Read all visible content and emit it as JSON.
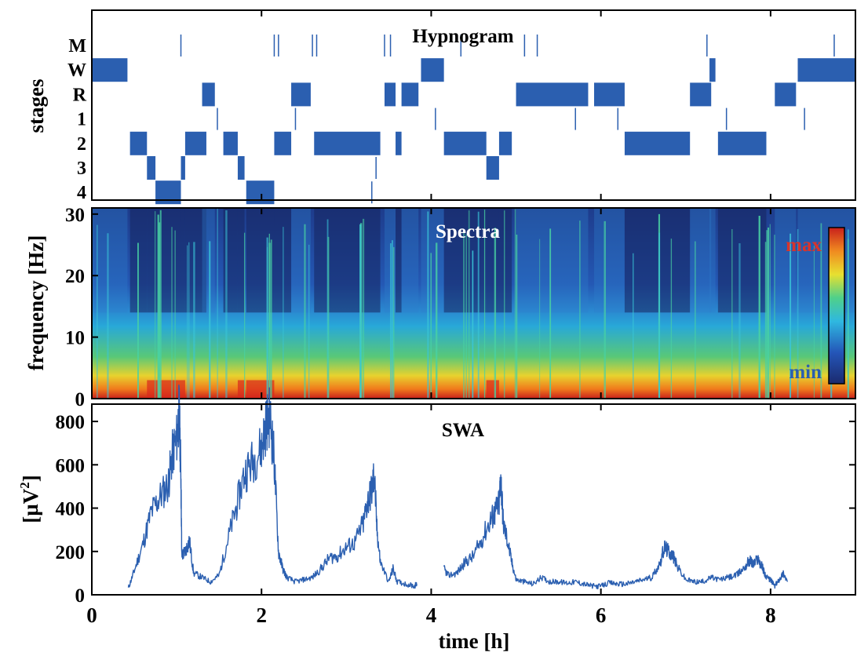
{
  "chart_data": [
    {
      "type": "line",
      "title": "Hypnogram",
      "ylabel": "stages",
      "y_categories": [
        "M",
        "W",
        "R",
        "1",
        "2",
        "3",
        "4"
      ],
      "xlim": [
        0,
        9
      ],
      "x_ticks": [
        0,
        2,
        4,
        6,
        8
      ],
      "color": "#2b5fb0",
      "segments": [
        {
          "stage": "W",
          "start": 0.0,
          "end": 0.42
        },
        {
          "stage": "2",
          "start": 0.45,
          "end": 0.65
        },
        {
          "stage": "3",
          "start": 0.65,
          "end": 0.75
        },
        {
          "stage": "4",
          "start": 0.75,
          "end": 1.05
        },
        {
          "stage": "3",
          "start": 1.05,
          "end": 1.1
        },
        {
          "stage": "2",
          "start": 1.1,
          "end": 1.35
        },
        {
          "stage": "R",
          "start": 1.3,
          "end": 1.45
        },
        {
          "stage": "2",
          "start": 1.55,
          "end": 1.72
        },
        {
          "stage": "3",
          "start": 1.72,
          "end": 1.8
        },
        {
          "stage": "4",
          "start": 1.82,
          "end": 2.15
        },
        {
          "stage": "2",
          "start": 2.15,
          "end": 2.35
        },
        {
          "stage": "R",
          "start": 2.35,
          "end": 2.58
        },
        {
          "stage": "2",
          "start": 2.62,
          "end": 3.4
        },
        {
          "stage": "R",
          "start": 3.45,
          "end": 3.58
        },
        {
          "stage": "2",
          "start": 3.58,
          "end": 3.65
        },
        {
          "stage": "R",
          "start": 3.65,
          "end": 3.85
        },
        {
          "stage": "W",
          "start": 3.88,
          "end": 4.15
        },
        {
          "stage": "2",
          "start": 4.15,
          "end": 4.65
        },
        {
          "stage": "3",
          "start": 4.65,
          "end": 4.8
        },
        {
          "stage": "2",
          "start": 4.8,
          "end": 4.95
        },
        {
          "stage": "R",
          "start": 5.0,
          "end": 5.85
        },
        {
          "stage": "R",
          "start": 5.92,
          "end": 6.28
        },
        {
          "stage": "2",
          "start": 6.28,
          "end": 7.05
        },
        {
          "stage": "R",
          "start": 7.05,
          "end": 7.3
        },
        {
          "stage": "W",
          "start": 7.28,
          "end": 7.35
        },
        {
          "stage": "2",
          "start": 7.38,
          "end": 7.95
        },
        {
          "stage": "R",
          "start": 8.05,
          "end": 8.3
        },
        {
          "stage": "W",
          "start": 8.32,
          "end": 9.0
        }
      ],
      "spikes": [
        {
          "stage": "M",
          "x": 1.05
        },
        {
          "stage": "M",
          "x": 2.15
        },
        {
          "stage": "M",
          "x": 2.2
        },
        {
          "stage": "M",
          "x": 2.6
        },
        {
          "stage": "M",
          "x": 2.65
        },
        {
          "stage": "M",
          "x": 3.45
        },
        {
          "stage": "M",
          "x": 3.52
        },
        {
          "stage": "M",
          "x": 4.35
        },
        {
          "stage": "M",
          "x": 5.1
        },
        {
          "stage": "M",
          "x": 5.25
        },
        {
          "stage": "M",
          "x": 7.25
        },
        {
          "stage": "M",
          "x": 8.75
        },
        {
          "stage": "1",
          "x": 1.48
        },
        {
          "stage": "1",
          "x": 2.4
        },
        {
          "stage": "1",
          "x": 4.05
        },
        {
          "stage": "1",
          "x": 5.7
        },
        {
          "stage": "1",
          "x": 6.2
        },
        {
          "stage": "1",
          "x": 7.48
        },
        {
          "stage": "1",
          "x": 8.4
        },
        {
          "stage": "3",
          "x": 3.35
        },
        {
          "stage": "4",
          "x": 3.3
        }
      ]
    },
    {
      "type": "heatmap",
      "title": "Spectra",
      "ylabel": "frequency [Hz]",
      "xlim": [
        0,
        9
      ],
      "ylim": [
        0,
        31
      ],
      "x_ticks": [
        0,
        2,
        4,
        6,
        8
      ],
      "y_ticks": [
        0,
        10,
        20,
        30
      ],
      "colorbar": {
        "max_label": "max",
        "min_label": "min",
        "max_color": "#d8342c",
        "min_color": "#2b5fb0",
        "placement": "right"
      }
    },
    {
      "type": "line",
      "title": "SWA",
      "ylabel": "[µV",
      "ylabel_sup": "2",
      "ylabel_close": "]",
      "xlabel": "time [h]",
      "xlim": [
        0,
        9
      ],
      "ylim": [
        0,
        880
      ],
      "x_ticks": [
        0,
        2,
        4,
        6,
        8
      ],
      "y_ticks": [
        0,
        200,
        400,
        600,
        800
      ],
      "color": "#2b5fb0",
      "series": [
        {
          "values": [
            [
              0.43,
              30
            ],
            [
              0.5,
              110
            ],
            [
              0.6,
              230
            ],
            [
              0.7,
              380
            ],
            [
              0.8,
              450
            ],
            [
              0.9,
              510
            ],
            [
              0.95,
              650
            ],
            [
              1.0,
              720
            ],
            [
              1.03,
              850
            ],
            [
              1.05,
              560
            ],
            [
              1.06,
              180
            ],
            [
              1.1,
              200
            ],
            [
              1.15,
              250
            ],
            [
              1.2,
              100
            ],
            [
              1.3,
              80
            ],
            [
              1.4,
              60
            ],
            [
              1.5,
              90
            ],
            [
              1.6,
              250
            ],
            [
              1.7,
              400
            ],
            [
              1.8,
              560
            ],
            [
              1.9,
              620
            ],
            [
              2.0,
              680
            ],
            [
              2.05,
              780
            ],
            [
              2.1,
              830
            ],
            [
              2.15,
              620
            ],
            [
              2.2,
              200
            ],
            [
              2.25,
              120
            ],
            [
              2.3,
              80
            ],
            [
              2.4,
              60
            ],
            [
              2.5,
              70
            ],
            [
              2.6,
              80
            ],
            [
              2.7,
              120
            ],
            [
              2.8,
              170
            ],
            [
              2.9,
              180
            ],
            [
              3.0,
              220
            ],
            [
              3.1,
              240
            ],
            [
              3.2,
              330
            ],
            [
              3.25,
              430
            ],
            [
              3.3,
              480
            ],
            [
              3.33,
              560
            ],
            [
              3.36,
              300
            ],
            [
              3.4,
              150
            ],
            [
              3.5,
              60
            ],
            [
              3.55,
              120
            ],
            [
              3.6,
              60
            ],
            [
              3.7,
              50
            ],
            [
              3.8,
              40
            ],
            [
              3.83,
              50
            ]
          ]
        },
        {
          "values": [
            [
              4.15,
              120
            ],
            [
              4.2,
              90
            ],
            [
              4.3,
              100
            ],
            [
              4.4,
              150
            ],
            [
              4.5,
              180
            ],
            [
              4.6,
              260
            ],
            [
              4.7,
              350
            ],
            [
              4.75,
              380
            ],
            [
              4.8,
              420
            ],
            [
              4.82,
              550
            ],
            [
              4.85,
              330
            ],
            [
              4.9,
              250
            ],
            [
              4.95,
              150
            ],
            [
              5.0,
              70
            ],
            [
              5.1,
              60
            ],
            [
              5.2,
              50
            ],
            [
              5.3,
              80
            ],
            [
              5.4,
              60
            ],
            [
              5.5,
              60
            ],
            [
              5.6,
              55
            ],
            [
              5.7,
              60
            ],
            [
              5.8,
              50
            ],
            [
              5.9,
              40
            ],
            [
              6.0,
              40
            ],
            [
              6.1,
              55
            ],
            [
              6.2,
              50
            ],
            [
              6.3,
              50
            ],
            [
              6.4,
              60
            ],
            [
              6.5,
              70
            ],
            [
              6.6,
              80
            ],
            [
              6.7,
              150
            ],
            [
              6.75,
              220
            ],
            [
              6.8,
              200
            ],
            [
              6.85,
              180
            ],
            [
              6.9,
              130
            ],
            [
              7.0,
              70
            ],
            [
              7.1,
              60
            ],
            [
              7.2,
              60
            ],
            [
              7.3,
              80
            ],
            [
              7.4,
              70
            ],
            [
              7.5,
              80
            ],
            [
              7.6,
              90
            ],
            [
              7.7,
              130
            ],
            [
              7.75,
              160
            ],
            [
              7.8,
              140
            ],
            [
              7.85,
              170
            ],
            [
              7.9,
              130
            ],
            [
              7.95,
              80
            ],
            [
              8.0,
              70
            ],
            [
              8.05,
              40
            ],
            [
              8.1,
              70
            ],
            [
              8.15,
              100
            ],
            [
              8.2,
              60
            ]
          ]
        }
      ]
    }
  ]
}
